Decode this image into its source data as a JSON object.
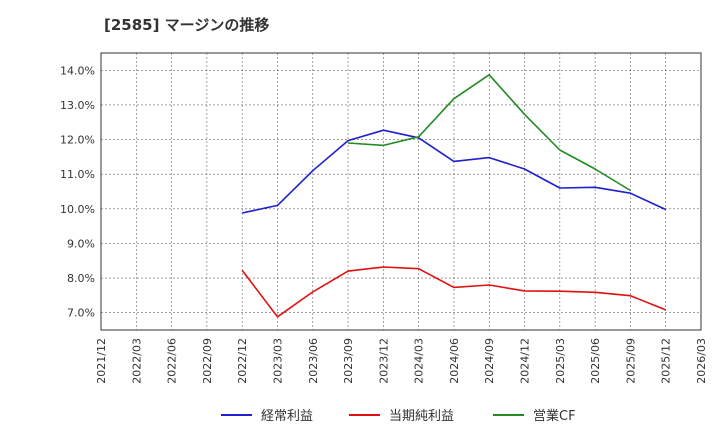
{
  "chart_data": {
    "type": "line",
    "title": "[2585]  マージンの推移",
    "xlabel": "",
    "ylabel": "",
    "ylim": [
      6.5,
      14.5
    ],
    "yticks": [
      7.0,
      8.0,
      9.0,
      10.0,
      11.0,
      12.0,
      13.0,
      14.0
    ],
    "ytick_labels": [
      "7.0%",
      "8.0%",
      "9.0%",
      "10.0%",
      "11.0%",
      "12.0%",
      "13.0%",
      "14.0%"
    ],
    "x_tick_labels": [
      "2021/12",
      "2022/03",
      "2022/06",
      "2022/09",
      "2022/12",
      "2023/03",
      "2023/06",
      "2023/09",
      "2023/12",
      "2024/03",
      "2024/06",
      "2024/09",
      "2024/12",
      "2025/03",
      "2025/06",
      "2025/09",
      "2025/12",
      "2026/03"
    ],
    "grid": true,
    "legend_position": "bottom",
    "series": [
      {
        "name": "経常利益",
        "color": "#1f1fd0",
        "points": [
          [
            4,
            9.88
          ],
          [
            5,
            10.1
          ],
          [
            6,
            11.1
          ],
          [
            7,
            11.97
          ],
          [
            8,
            12.27
          ],
          [
            9,
            12.05
          ],
          [
            10,
            11.37
          ],
          [
            11,
            11.48
          ],
          [
            12,
            11.15
          ],
          [
            13,
            10.6
          ],
          [
            14,
            10.62
          ],
          [
            15,
            10.45
          ],
          [
            16,
            9.98
          ]
        ]
      },
      {
        "name": "当期純利益",
        "color": "#e01010",
        "points": [
          [
            4,
            8.22
          ],
          [
            5,
            6.88
          ],
          [
            6,
            7.6
          ],
          [
            7,
            8.2
          ],
          [
            8,
            8.32
          ],
          [
            9,
            8.27
          ],
          [
            10,
            7.73
          ],
          [
            11,
            7.8
          ],
          [
            12,
            7.63
          ],
          [
            13,
            7.62
          ],
          [
            14,
            7.59
          ],
          [
            15,
            7.49
          ],
          [
            16,
            7.08
          ]
        ]
      },
      {
        "name": "営業CF",
        "color": "#228b22",
        "points": [
          [
            7,
            11.9
          ],
          [
            8,
            11.83
          ],
          [
            9,
            12.08
          ],
          [
            10,
            13.18
          ],
          [
            11,
            13.87
          ],
          [
            12,
            12.73
          ],
          [
            13,
            11.7
          ],
          [
            14,
            11.15
          ],
          [
            15,
            10.53
          ]
        ]
      }
    ]
  }
}
